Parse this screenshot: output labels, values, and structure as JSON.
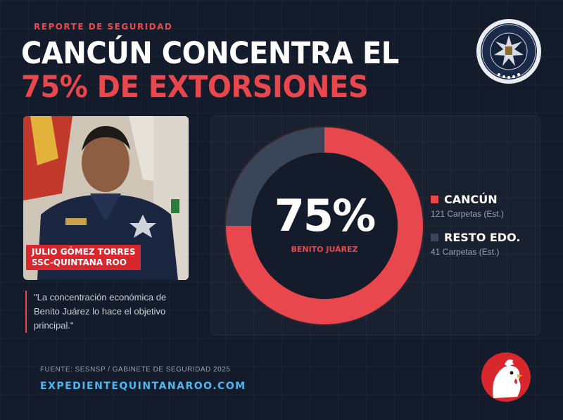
{
  "header": {
    "kicker": "REPORTE DE SEGURIDAD",
    "title_line1": "CANCÚN CONCENTRA EL",
    "title_line2": "75% DE EXTORSIONES"
  },
  "photo": {
    "caption_line1": "JULIO GÓMEZ TORRES",
    "caption_line2": "SSC-QUINTANA ROO"
  },
  "quote": "\"La concentración económica de Benito Juárez lo hace el objetivo principal.\"",
  "chart_data": {
    "type": "pie",
    "center_value": "75%",
    "center_label": "BENITO JUÁREZ",
    "series": [
      {
        "name": "CANCÚN",
        "value": 121,
        "share": 0.75,
        "detail": "121 Carpetas (Est.)",
        "color": "#e8474d"
      },
      {
        "name": "RESTO EDO.",
        "value": 41,
        "share": 0.25,
        "detail": "41 Carpetas (Est.)",
        "color": "#3a4558"
      }
    ]
  },
  "footer": {
    "source": "FUENTE: SESNSP / GABINETE DE SEGURIDAD 2025",
    "site": "EXPEDIENTEQUINTANAROO.COM"
  },
  "colors": {
    "accent": "#e8474d",
    "background": "#141b2b",
    "link": "#4fb8f0"
  }
}
